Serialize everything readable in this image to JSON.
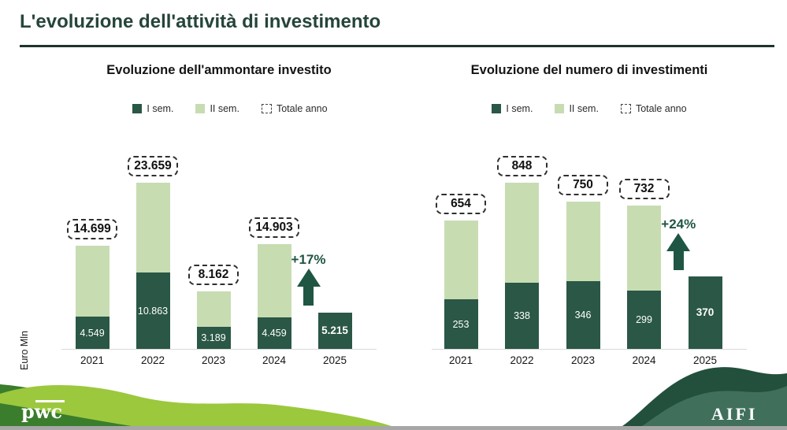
{
  "slide": {
    "title": "L'evoluzione dell'attività di investimento"
  },
  "branding": {
    "pwc": "pwc",
    "aifi": "AIFI"
  },
  "colors": {
    "sem1_dark_green": "#2a5746",
    "sem2_light_green": "#c8dcb2",
    "accent_green": "#1f5643",
    "title_green": "#26453a",
    "pwc_wave_dark": "#3a7d2c",
    "pwc_wave_light": "#9cc83e",
    "aifi_wave_back": "#22503c",
    "aifi_wave_front": "#40705c"
  },
  "chart_data": [
    {
      "type": "bar",
      "stacked": true,
      "title": "Evoluzione dell'ammontare investito",
      "ylabel": "Euro Mln",
      "legend": [
        "I sem.",
        "II sem.",
        "Totale anno"
      ],
      "legend_position": "top",
      "grid": false,
      "categories": [
        "2021",
        "2022",
        "2023",
        "2024",
        "2025"
      ],
      "series": [
        {
          "name": "I sem.",
          "values": [
            4549,
            10863,
            3189,
            4459,
            5215
          ],
          "labels": [
            "4.549",
            "10.863",
            "3.189",
            "4.459",
            "5.215"
          ]
        },
        {
          "name": "II sem.",
          "values": [
            10150,
            12796,
            4973,
            10444,
            null
          ]
        }
      ],
      "totals": {
        "values": [
          14699,
          23659,
          8162,
          14903,
          null
        ],
        "labels": [
          "14.699",
          "23.659",
          "8.162",
          "14.903",
          null
        ]
      },
      "growth_label": "+17%"
    },
    {
      "type": "bar",
      "stacked": true,
      "title": "Evoluzione del numero di investimenti",
      "ylabel": "",
      "legend": [
        "I sem.",
        "II sem.",
        "Totale anno"
      ],
      "legend_position": "top",
      "grid": false,
      "categories": [
        "2021",
        "2022",
        "2023",
        "2024",
        "2025"
      ],
      "series": [
        {
          "name": "I sem.",
          "values": [
            253,
            338,
            346,
            299,
            370
          ],
          "labels": [
            "253",
            "338",
            "346",
            "299",
            "370"
          ]
        },
        {
          "name": "II sem.",
          "values": [
            401,
            510,
            404,
            433,
            null
          ]
        }
      ],
      "totals": {
        "values": [
          654,
          848,
          750,
          732,
          null
        ],
        "labels": [
          "654",
          "848",
          "750",
          "732",
          null
        ]
      },
      "growth_label": "+24%"
    }
  ]
}
